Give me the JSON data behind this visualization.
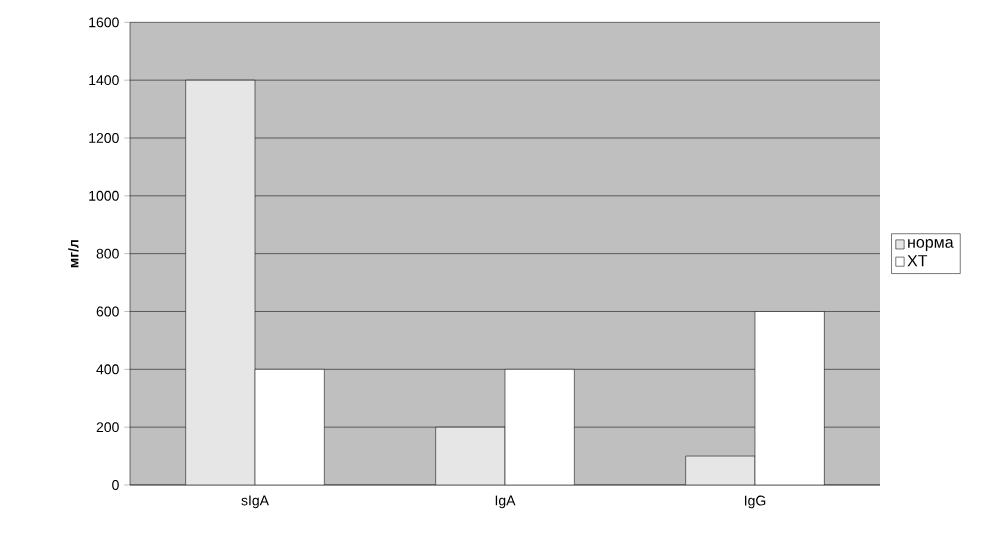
{
  "chart_data": {
    "type": "bar",
    "ylabel": "мг/л",
    "categories": [
      "sIgA",
      "IgA",
      "IgG"
    ],
    "series": [
      {
        "name": "норма",
        "color": "#e6e6e6",
        "values": [
          1400,
          200,
          100
        ]
      },
      {
        "name": "ХТ",
        "color": "#ffffff",
        "values": [
          400,
          400,
          600
        ]
      }
    ],
    "ylim": [
      0,
      1600
    ],
    "yticks": [
      0,
      200,
      400,
      600,
      800,
      1000,
      1200,
      1400,
      1600
    ],
    "grid": "y",
    "legend": "right"
  }
}
